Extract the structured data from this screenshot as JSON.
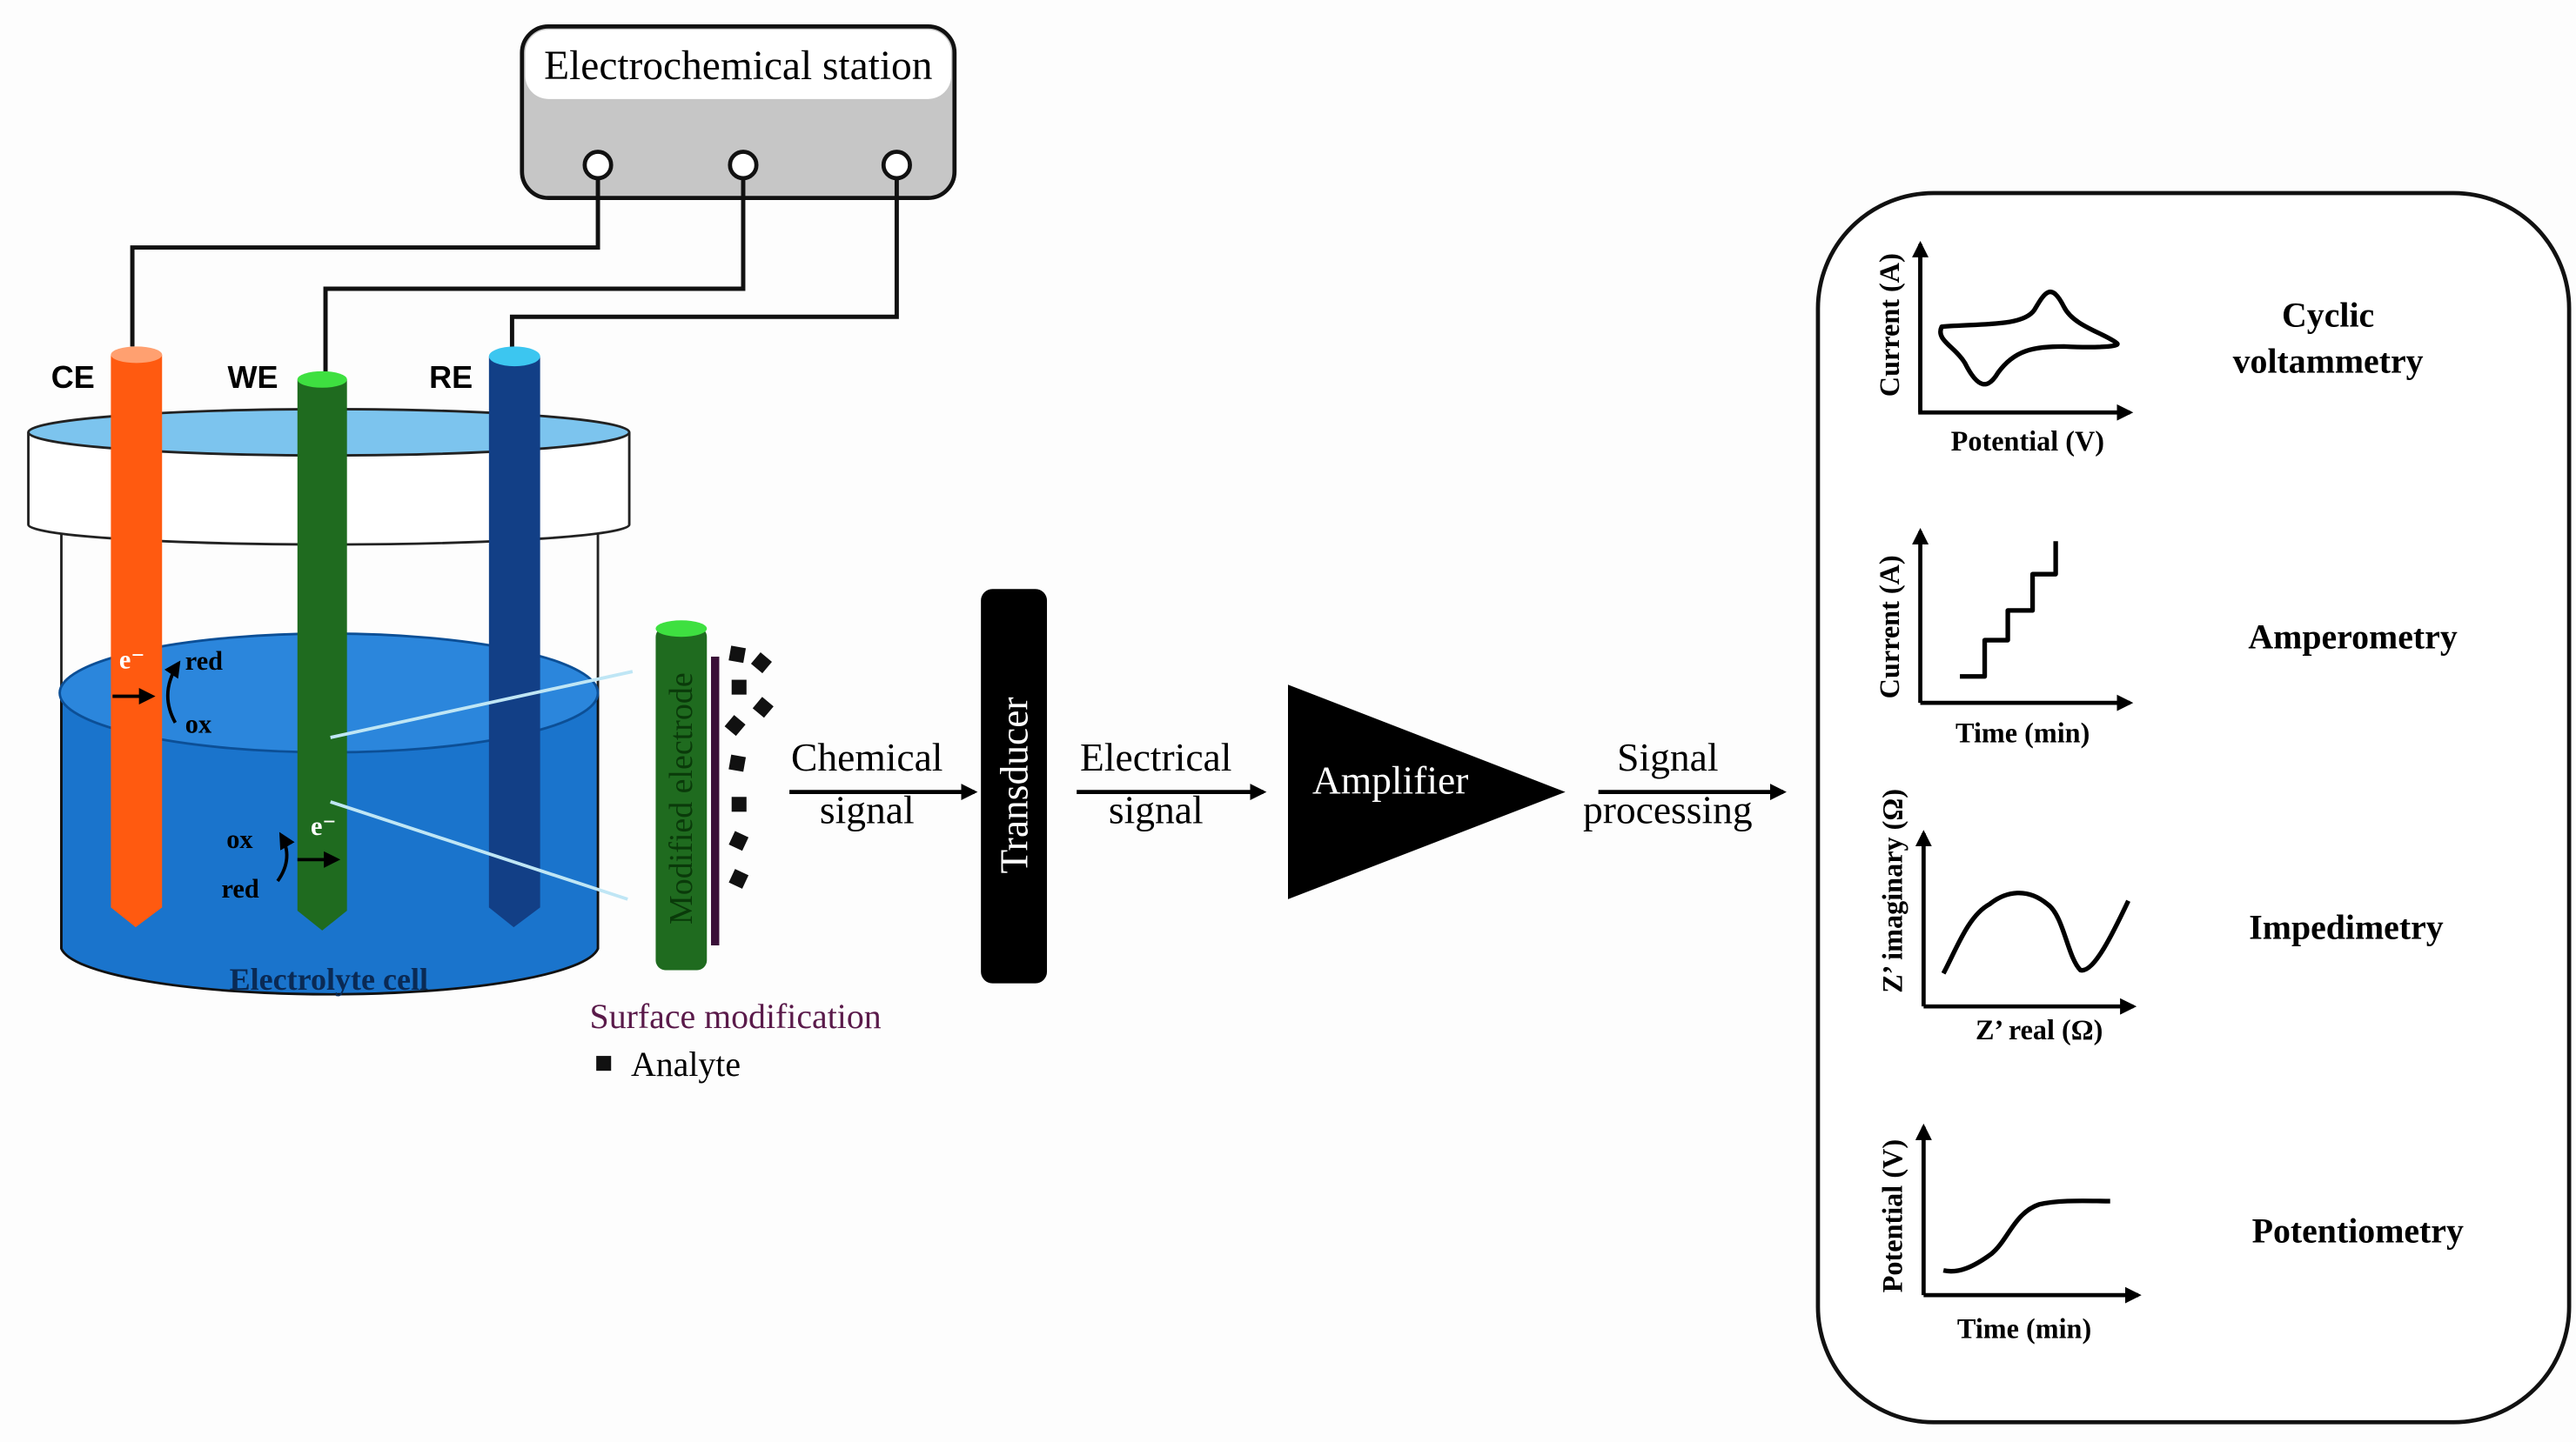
{
  "station": {
    "title": "Electrochemical station"
  },
  "electrodes": {
    "ce": "CE",
    "we": "WE",
    "re": "RE"
  },
  "cell": {
    "label": "Electrolyte cell",
    "ce_electron": "e⁻",
    "ce_red": "red",
    "ce_ox": "ox",
    "we_electron": "e⁻",
    "we_ox": "ox",
    "we_red": "red"
  },
  "modified": {
    "electrode_label": "Modified electrode",
    "surface_label": "Surface modification",
    "analyte_label": "Analyte"
  },
  "flow": {
    "chemical_1": "Chemical",
    "chemical_2": "signal",
    "transducer": "Transducer",
    "electrical_1": "Electrical",
    "electrical_2": "signal",
    "amplifier": "Amplifier",
    "processing_1": "Signal",
    "processing_2": "processing"
  },
  "techniques": [
    {
      "title_1": "Cyclic",
      "title_2": "voltammetry",
      "ylabel": "Current (A)",
      "xlabel": "Potential (V)"
    },
    {
      "title_1": "Amperometry",
      "ylabel": "Current (A)",
      "xlabel": "Time (min)"
    },
    {
      "title_1": "Impedimetry",
      "ylabel": "Z’ imaginary (Ω)",
      "xlabel": "Z’ real (Ω)"
    },
    {
      "title_1": "Potentiometry",
      "ylabel": "Potential (V)",
      "xlabel": "Time (min)"
    }
  ],
  "colors": {
    "ce": "#ff5a10",
    "we": "#1f6b1f",
    "re": "#123f86",
    "electrolyte": "#1a74cc",
    "station": "#c6c6c6",
    "surface": "#5a1a4a"
  }
}
